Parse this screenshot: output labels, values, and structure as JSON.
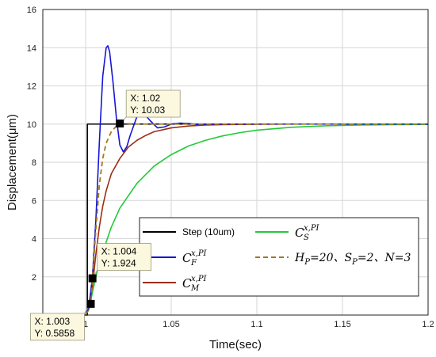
{
  "chart_data": {
    "type": "line",
    "title": "",
    "xlabel": "Time(sec)",
    "ylabel": "Displacement(μm)",
    "xlim": [
      0.975,
      1.2
    ],
    "ylim": [
      0,
      16
    ],
    "xticks": [
      1,
      1.05,
      1.1,
      1.15,
      1.2
    ],
    "xtick_labels": [
      "1",
      "1.05",
      "1.1",
      "1.15",
      "1.2"
    ],
    "yticks": [
      2,
      4,
      6,
      8,
      10,
      12,
      14,
      16
    ],
    "ytick_labels": [
      "2",
      "4",
      "6",
      "8",
      "10",
      "12",
      "14",
      "16"
    ],
    "grid": true,
    "legend_position": "bottom-right",
    "series": [
      {
        "name": "Step (10um)",
        "color": "#000000",
        "style": "solid",
        "x": [
          0.975,
          1.001,
          1.001,
          1.2
        ],
        "y": [
          0,
          0,
          10,
          10
        ]
      },
      {
        "name": "C_S^{x,PI}",
        "color": "#22c93a",
        "style": "solid",
        "x": [
          1.0,
          1.002,
          1.004,
          1.007,
          1.01,
          1.015,
          1.02,
          1.03,
          1.04,
          1.05,
          1.06,
          1.07,
          1.08,
          1.09,
          1.1,
          1.12,
          1.14,
          1.16,
          1.18,
          1.2
        ],
        "y": [
          0,
          0.3,
          1.2,
          2.4,
          3.3,
          4.6,
          5.6,
          6.9,
          7.8,
          8.4,
          8.85,
          9.15,
          9.38,
          9.55,
          9.68,
          9.83,
          9.91,
          9.95,
          9.97,
          9.98
        ]
      },
      {
        "name": "C_F^{x,PI}",
        "color": "#1515d6",
        "style": "solid",
        "x": [
          1.0,
          1.002,
          1.004,
          1.006,
          1.008,
          1.01,
          1.012,
          1.013,
          1.014,
          1.016,
          1.018,
          1.02,
          1.022,
          1.024,
          1.026,
          1.03,
          1.034,
          1.038,
          1.042,
          1.046,
          1.05,
          1.055,
          1.06,
          1.065,
          1.07,
          1.08,
          1.09,
          1.1,
          1.2
        ],
        "y": [
          0,
          0.5,
          2.0,
          5.0,
          9.0,
          12.5,
          14.0,
          14.1,
          13.8,
          12.2,
          10.3,
          8.9,
          8.55,
          8.8,
          9.4,
          10.4,
          10.55,
          10.15,
          9.8,
          9.85,
          10.0,
          10.05,
          10.03,
          9.98,
          9.99,
          10.0,
          10.0,
          10.0,
          10.0
        ]
      },
      {
        "name": "H_P=20、S_P=2、N=3",
        "color": "#a37a18",
        "style": "dashed",
        "x": [
          1.0,
          1.002,
          1.003,
          1.004,
          1.006,
          1.008,
          1.01,
          1.012,
          1.015,
          1.018,
          1.02,
          1.025,
          1.03,
          1.04,
          1.05,
          1.2
        ],
        "y": [
          0,
          0.3,
          0.5858,
          1.924,
          4.5,
          6.8,
          8.2,
          9.0,
          9.6,
          9.9,
          10.03,
          10.02,
          10.0,
          10.0,
          10.0,
          10.0
        ]
      },
      {
        "name": "C_M^{x,PI}",
        "color": "#9a2f14",
        "style": "solid",
        "x": [
          1.0,
          1.002,
          1.004,
          1.006,
          1.008,
          1.01,
          1.012,
          1.015,
          1.02,
          1.025,
          1.03,
          1.035,
          1.04,
          1.05,
          1.06,
          1.07,
          1.08,
          1.09,
          1.1,
          1.12,
          1.14,
          1.2
        ],
        "y": [
          0,
          0.4,
          1.5,
          3.2,
          4.6,
          5.7,
          6.5,
          7.4,
          8.2,
          8.8,
          9.15,
          9.4,
          9.6,
          9.8,
          9.9,
          9.95,
          9.97,
          9.98,
          9.99,
          10.0,
          10.0,
          10.0
        ]
      }
    ],
    "legend": {
      "entries": [
        {
          "label": "Step (10um)",
          "color": "#000000",
          "style": "solid"
        },
        {
          "base": "C",
          "sub": "S",
          "sup": "x,PI",
          "color": "#22c93a",
          "style": "solid"
        },
        {
          "base": "C",
          "sub": "F",
          "sup": "x,PI",
          "color": "#1515d6",
          "style": "solid"
        },
        {
          "math": "H_P=20、S_P=2、N=3",
          "color": "#a37a18",
          "style": "dashed"
        },
        {
          "base": "C",
          "sub": "M",
          "sup": "x,PI",
          "color": "#9a2f14",
          "style": "solid"
        }
      ]
    },
    "annotations": [
      {
        "x": 1.02,
        "y": 10.03,
        "lines": [
          "X: 1.02",
          "Y: 10.03"
        ],
        "anchor": "top-left"
      },
      {
        "x": 1.004,
        "y": 1.924,
        "lines": [
          "X: 1.004",
          "Y: 1.924"
        ],
        "anchor": "top-right"
      },
      {
        "x": 1.003,
        "y": 0.5858,
        "lines": [
          "X: 1.003",
          "Y: 0.5858"
        ],
        "anchor": "bottom-left"
      }
    ]
  }
}
